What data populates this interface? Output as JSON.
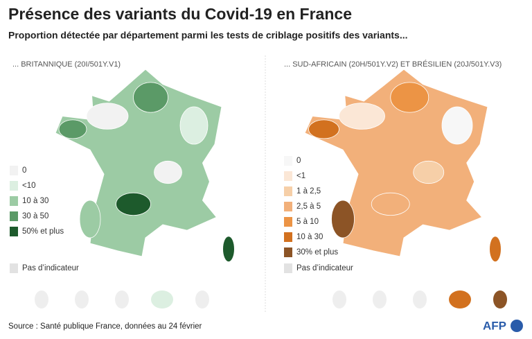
{
  "title": "Présence des variants du Covid-19 en France",
  "subtitle": "Proportion détectée par département parmi les tests de criblage positifs des variants...",
  "panels": [
    {
      "label": "... BRITANNIQUE (20I/501Y.V1)",
      "legend": [
        {
          "label": "0",
          "color": "#f2f2f2"
        },
        {
          "label": "<10",
          "color": "#dcefe1"
        },
        {
          "label": "10 à 30",
          "color": "#9ccba4"
        },
        {
          "label": "30 à 50",
          "color": "#5b9a67"
        },
        {
          "label": "50% et plus",
          "color": "#1d5a2c"
        }
      ],
      "no_data": {
        "label": "Pas d’indicateur",
        "color": "#e2e2e2"
      }
    },
    {
      "label": "... SUD-AFRICAIN (20H/501Y.V2) ET BRÉSILIEN (20J/501Y.V3)",
      "legend": [
        {
          "label": "0",
          "color": "#f7f7f7"
        },
        {
          "label": "<1",
          "color": "#fbe7d6"
        },
        {
          "label": "1 à 2,5",
          "color": "#f6cfa8"
        },
        {
          "label": "2,5 à 5",
          "color": "#f2b07a"
        },
        {
          "label": "5 à 10",
          "color": "#ec9445"
        },
        {
          "label": "10 à 30",
          "color": "#d2711f"
        },
        {
          "label": "30% et plus",
          "color": "#8c5426"
        }
      ],
      "no_data": {
        "label": "Pas d’indicateur",
        "color": "#e2e2e2"
      }
    }
  ],
  "source": "Source : Santé publique France, données au 24 février",
  "logo": "AFP"
}
